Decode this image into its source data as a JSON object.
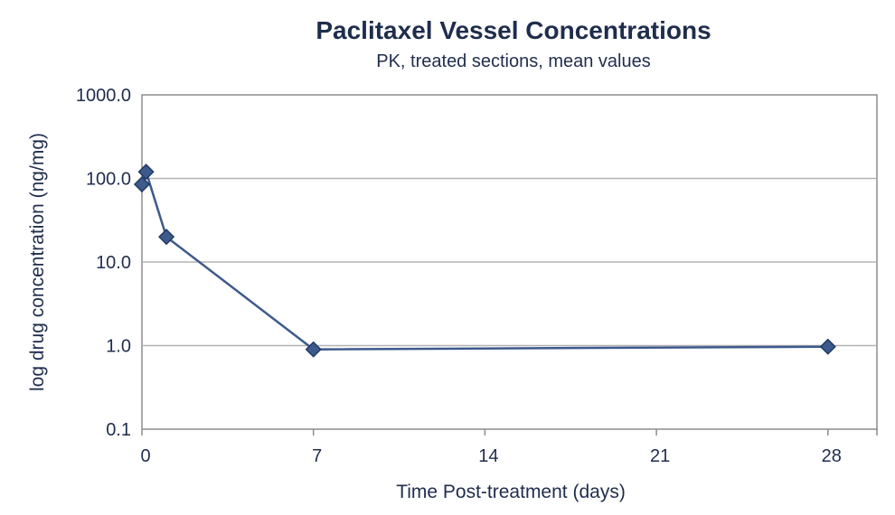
{
  "chart_data": {
    "type": "line",
    "title": "Paclitaxel Vessel Concentrations",
    "subtitle": "PK, treated sections, mean values",
    "xlabel": "Time Post-treatment (days)",
    "ylabel": "log drug concentration (ng/mg)",
    "xlim": [
      0,
      30
    ],
    "ylim": [
      0.1,
      1000
    ],
    "yscale": "log",
    "x_ticks": [
      0,
      7,
      14,
      21,
      28
    ],
    "x_tick_labels": [
      "0",
      "7",
      "14",
      "21",
      "28"
    ],
    "y_ticks": [
      0.1,
      1,
      10,
      100,
      1000
    ],
    "y_tick_labels": [
      "0.1",
      "1.0",
      "10.0",
      "100.0",
      "1000.0"
    ],
    "grid": "horizontal",
    "legend": "none",
    "series": [
      {
        "x": [
          0,
          0.17,
          1,
          7,
          28
        ],
        "y": [
          85,
          120,
          20,
          0.9,
          0.97
        ]
      }
    ],
    "colors": {
      "line": "#3d5a8c",
      "marker": "#3d5a8c",
      "marker_stroke": "#1f3a63",
      "text": "#1f2d4d",
      "grid": "#b3b3b3",
      "frame": "#8c8c8c"
    }
  }
}
